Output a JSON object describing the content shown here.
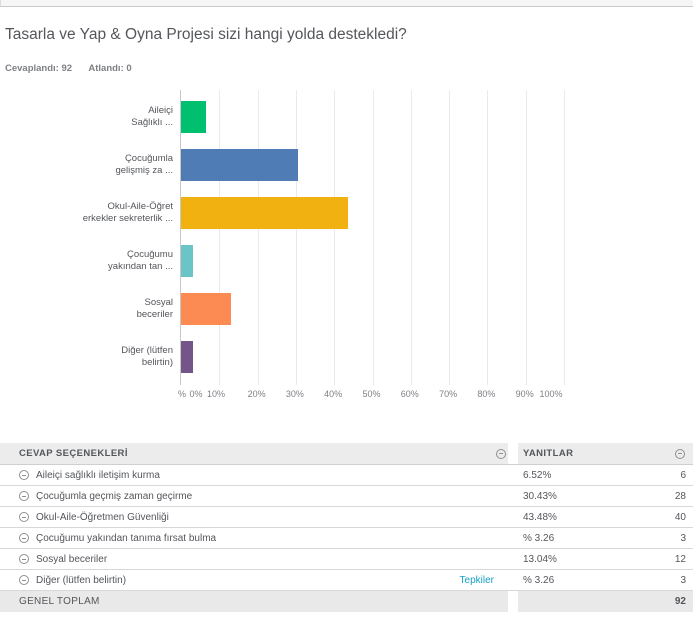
{
  "header": {
    "title": "Tasarla ve Yap & Oyna Projesi sizi hangi yolda destekledi?",
    "answered_label": "Cevaplandı:",
    "answered_value": "92",
    "skipped_label": "Atlandı:",
    "skipped_value": "0"
  },
  "chart_data": {
    "type": "bar",
    "orientation": "horizontal",
    "title": "",
    "xlabel": "%",
    "xlim": [
      0,
      100
    ],
    "grid": true,
    "x_ticks": [
      "%",
      "0%",
      "10%",
      "20%",
      "30%",
      "40%",
      "50%",
      "60%",
      "70%",
      "80%",
      "90%",
      "100%"
    ],
    "categories": [
      [
        "Aileiçi",
        "Sağlıklı ..."
      ],
      [
        "Çocuğumla",
        "gelişmiş za ..."
      ],
      [
        "Okul-Aile-Öğret",
        "erkekler sekreterlik ..."
      ],
      [
        "Çocuğumu",
        "yakından tan ..."
      ],
      [
        "Sosyal",
        "beceriler"
      ],
      [
        "Diğer (lütfen",
        "belirtin)"
      ]
    ],
    "values": [
      6.52,
      30.43,
      43.48,
      3.26,
      13.04,
      3.26
    ],
    "colors": [
      "#00BF6F",
      "#507CB6",
      "#F1B211",
      "#6BC4C6",
      "#FC8B53",
      "#745589"
    ]
  },
  "table": {
    "columns": [
      "CEVAP SEÇENEKLERİ",
      "YANITLAR"
    ],
    "rows": [
      {
        "option": "Aileiçi sağlıklı iletişim kurma",
        "pct": "6.52%",
        "count": "6"
      },
      {
        "option": "Çocuğumla geçmiş zaman geçirme",
        "pct": "30.43%",
        "count": "28"
      },
      {
        "option": "Okul-Aile-Öğretmen Güvenliği",
        "pct": "43.48%",
        "count": "40"
      },
      {
        "option": "Çocuğumu yakından tanıma fırsat bulma",
        "pct": "% 3.26",
        "count": "3"
      },
      {
        "option": "Sosyal beceriler",
        "pct": "13.04%",
        "count": "12"
      },
      {
        "option": "Diğer (lütfen belirtin)",
        "link": "Tepkiler",
        "pct": "% 3.26",
        "count": "3"
      }
    ],
    "footer": {
      "label": "GENEL TOPLAM",
      "count": "92"
    }
  },
  "colors": {
    "link": "#16A0C6",
    "text_primary": "#54565B",
    "text_secondary": "#7E8085",
    "gridline": "#EAEAEA",
    "axis_line": "#C9C9C9",
    "table_header_bg": "#ECECEC",
    "table_footer_bg": "#E9E9E9",
    "row_border": "#D8D8D8"
  }
}
